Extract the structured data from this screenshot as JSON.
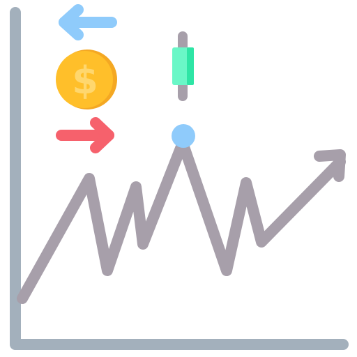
{
  "icon": {
    "dollar_symbol": "$",
    "elements": [
      "chart-axes",
      "trend-line",
      "arrow-left-icon",
      "arrow-right-icon",
      "dollar-coin-icon",
      "candlestick-icon",
      "peak-marker"
    ]
  },
  "colors": {
    "axis": "#A3B0BC",
    "trend_line": "#A79FAA",
    "arrow_left": "#8FCBFB",
    "arrow_right": "#F6616C",
    "coin_outer": "#FFBF2A",
    "coin_shadow": "#F4A823",
    "coin_inner": "#FFD76E",
    "candle_body": "#6AF7C7",
    "candle_body_shade": "#2EE5A5",
    "candle_wick": "#A79FAA",
    "peak_dot": "#8FCBFB"
  }
}
